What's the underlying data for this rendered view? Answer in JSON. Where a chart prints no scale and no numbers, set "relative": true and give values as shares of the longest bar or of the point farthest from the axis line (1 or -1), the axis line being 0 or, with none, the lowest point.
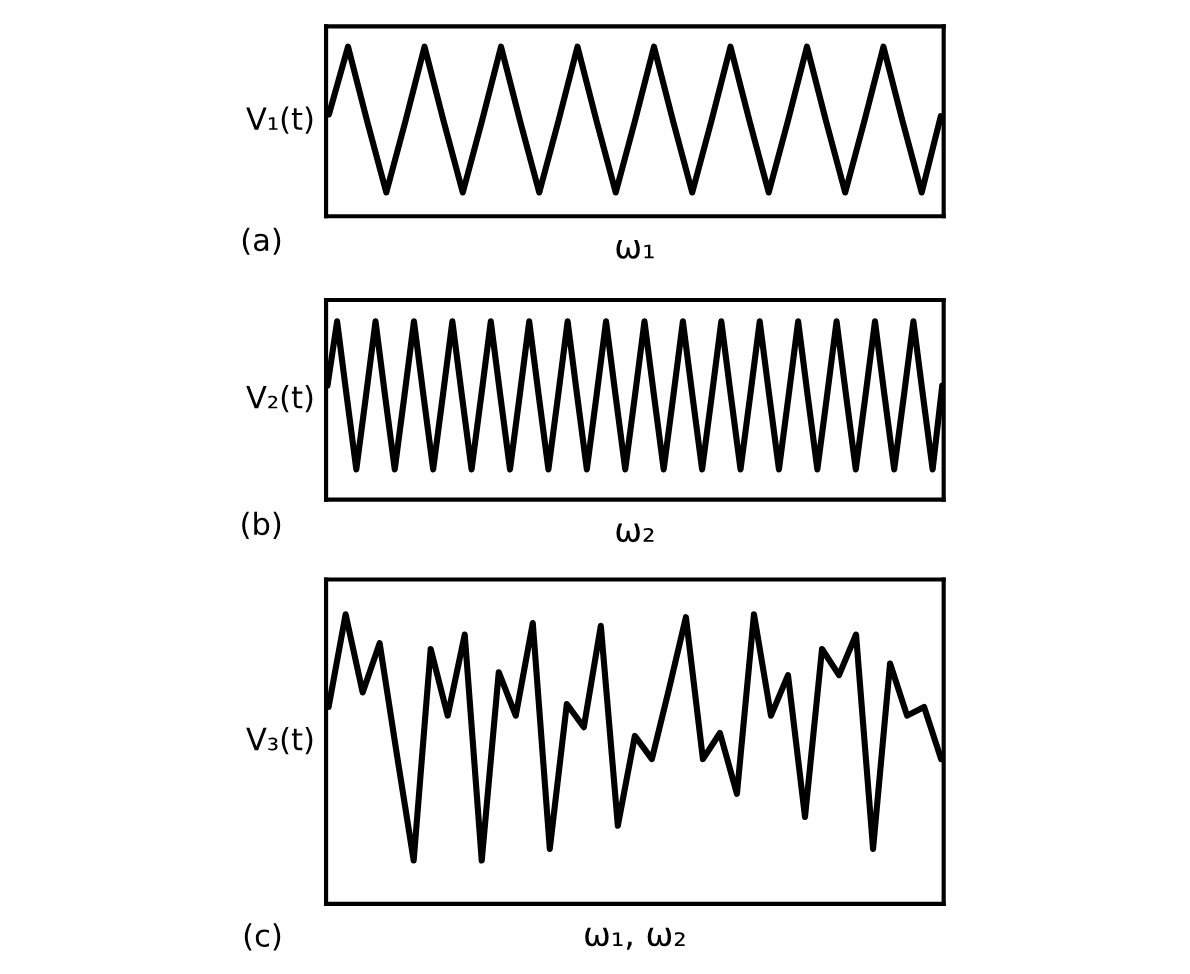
{
  "chart_data": [
    {
      "type": "line",
      "relative": true,
      "ylabel": "V₁(t)",
      "xlabel": "ω₁",
      "annotations": [
        "(a)"
      ],
      "tick_labels": false,
      "marker": "none",
      "line_style": "solid",
      "categories": [
        null,
        null,
        null,
        null,
        null,
        null,
        null,
        null,
        null,
        null,
        null,
        null,
        null,
        null,
        null,
        null,
        null,
        null,
        null,
        null,
        null,
        null,
        null,
        null,
        null,
        null,
        null,
        null,
        null,
        null,
        null,
        null,
        null
      ],
      "series": [
        {
          "color": "#000000",
          "values": [
            0.6,
            1,
            0.56,
            0.14,
            0.56,
            1,
            0.56,
            0.14,
            0.56,
            1,
            0.56,
            0.14,
            0.56,
            1,
            0.56,
            0.14,
            0.56,
            1,
            0.56,
            0.14,
            0.56,
            1,
            0.56,
            0.14,
            0.56,
            1,
            0.56,
            0.14,
            0.56,
            1,
            0.56,
            0.14,
            0.59
          ]
        }
      ]
    },
    {
      "type": "line",
      "relative": true,
      "ylabel": "V₂(t)",
      "xlabel": "ω₂",
      "annotations": [
        "(b)"
      ],
      "tick_labels": false,
      "marker": "none",
      "line_style": "solid",
      "categories": [
        null,
        null,
        null,
        null,
        null,
        null,
        null,
        null,
        null,
        null,
        null,
        null,
        null,
        null,
        null,
        null,
        null,
        null,
        null,
        null,
        null,
        null,
        null,
        null,
        null,
        null,
        null,
        null,
        null,
        null,
        null,
        null,
        null,
        null,
        null,
        null,
        null,
        null,
        null,
        null,
        null,
        null,
        null,
        null,
        null,
        null,
        null,
        null,
        null,
        null,
        null,
        null,
        null,
        null,
        null,
        null,
        null,
        null,
        null,
        null,
        null,
        null,
        null,
        null,
        null
      ],
      "series": [
        {
          "color": "#000000",
          "values": [
            0.64,
            1,
            0.58,
            0.17,
            0.58,
            1,
            0.58,
            0.17,
            0.58,
            1,
            0.58,
            0.17,
            0.58,
            1,
            0.58,
            0.17,
            0.58,
            1,
            0.58,
            0.17,
            0.58,
            1,
            0.58,
            0.17,
            0.58,
            1,
            0.58,
            0.17,
            0.58,
            1,
            0.58,
            0.17,
            0.58,
            1,
            0.58,
            0.17,
            0.58,
            1,
            0.58,
            0.17,
            0.58,
            1,
            0.58,
            0.17,
            0.58,
            1,
            0.58,
            0.17,
            0.58,
            1,
            0.58,
            0.17,
            0.58,
            1,
            0.58,
            0.17,
            0.58,
            1,
            0.58,
            0.17,
            0.58,
            1,
            0.58,
            0.17,
            0.64
          ]
        }
      ]
    },
    {
      "type": "line",
      "relative": true,
      "ylabel": "V₃(t)",
      "xlabel": "ω₁, ω₂",
      "annotations": [
        "(c)"
      ],
      "tick_labels": false,
      "marker": "none",
      "line_style": "solid",
      "categories": [
        null,
        null,
        null,
        null,
        null,
        null,
        null,
        null,
        null,
        null,
        null,
        null,
        null,
        null,
        null,
        null,
        null,
        null,
        null,
        null,
        null,
        null,
        null,
        null,
        null,
        null,
        null,
        null,
        null,
        null,
        null,
        null,
        null,
        null,
        null,
        null,
        null
      ],
      "series": [
        {
          "color": "#000000",
          "values": [
            0.68,
            1.0,
            0.73,
            0.9,
            0.52,
            0.15,
            0.88,
            0.65,
            0.93,
            0.15,
            0.8,
            0.65,
            0.97,
            0.19,
            0.69,
            0.61,
            0.96,
            0.27,
            0.58,
            0.5,
            0.74,
            0.99,
            0.5,
            0.59,
            0.38,
            1.0,
            0.65,
            0.79,
            0.3,
            0.88,
            0.79,
            0.93,
            0.19,
            0.83,
            0.65,
            0.68,
            0.5
          ]
        }
      ]
    }
  ]
}
